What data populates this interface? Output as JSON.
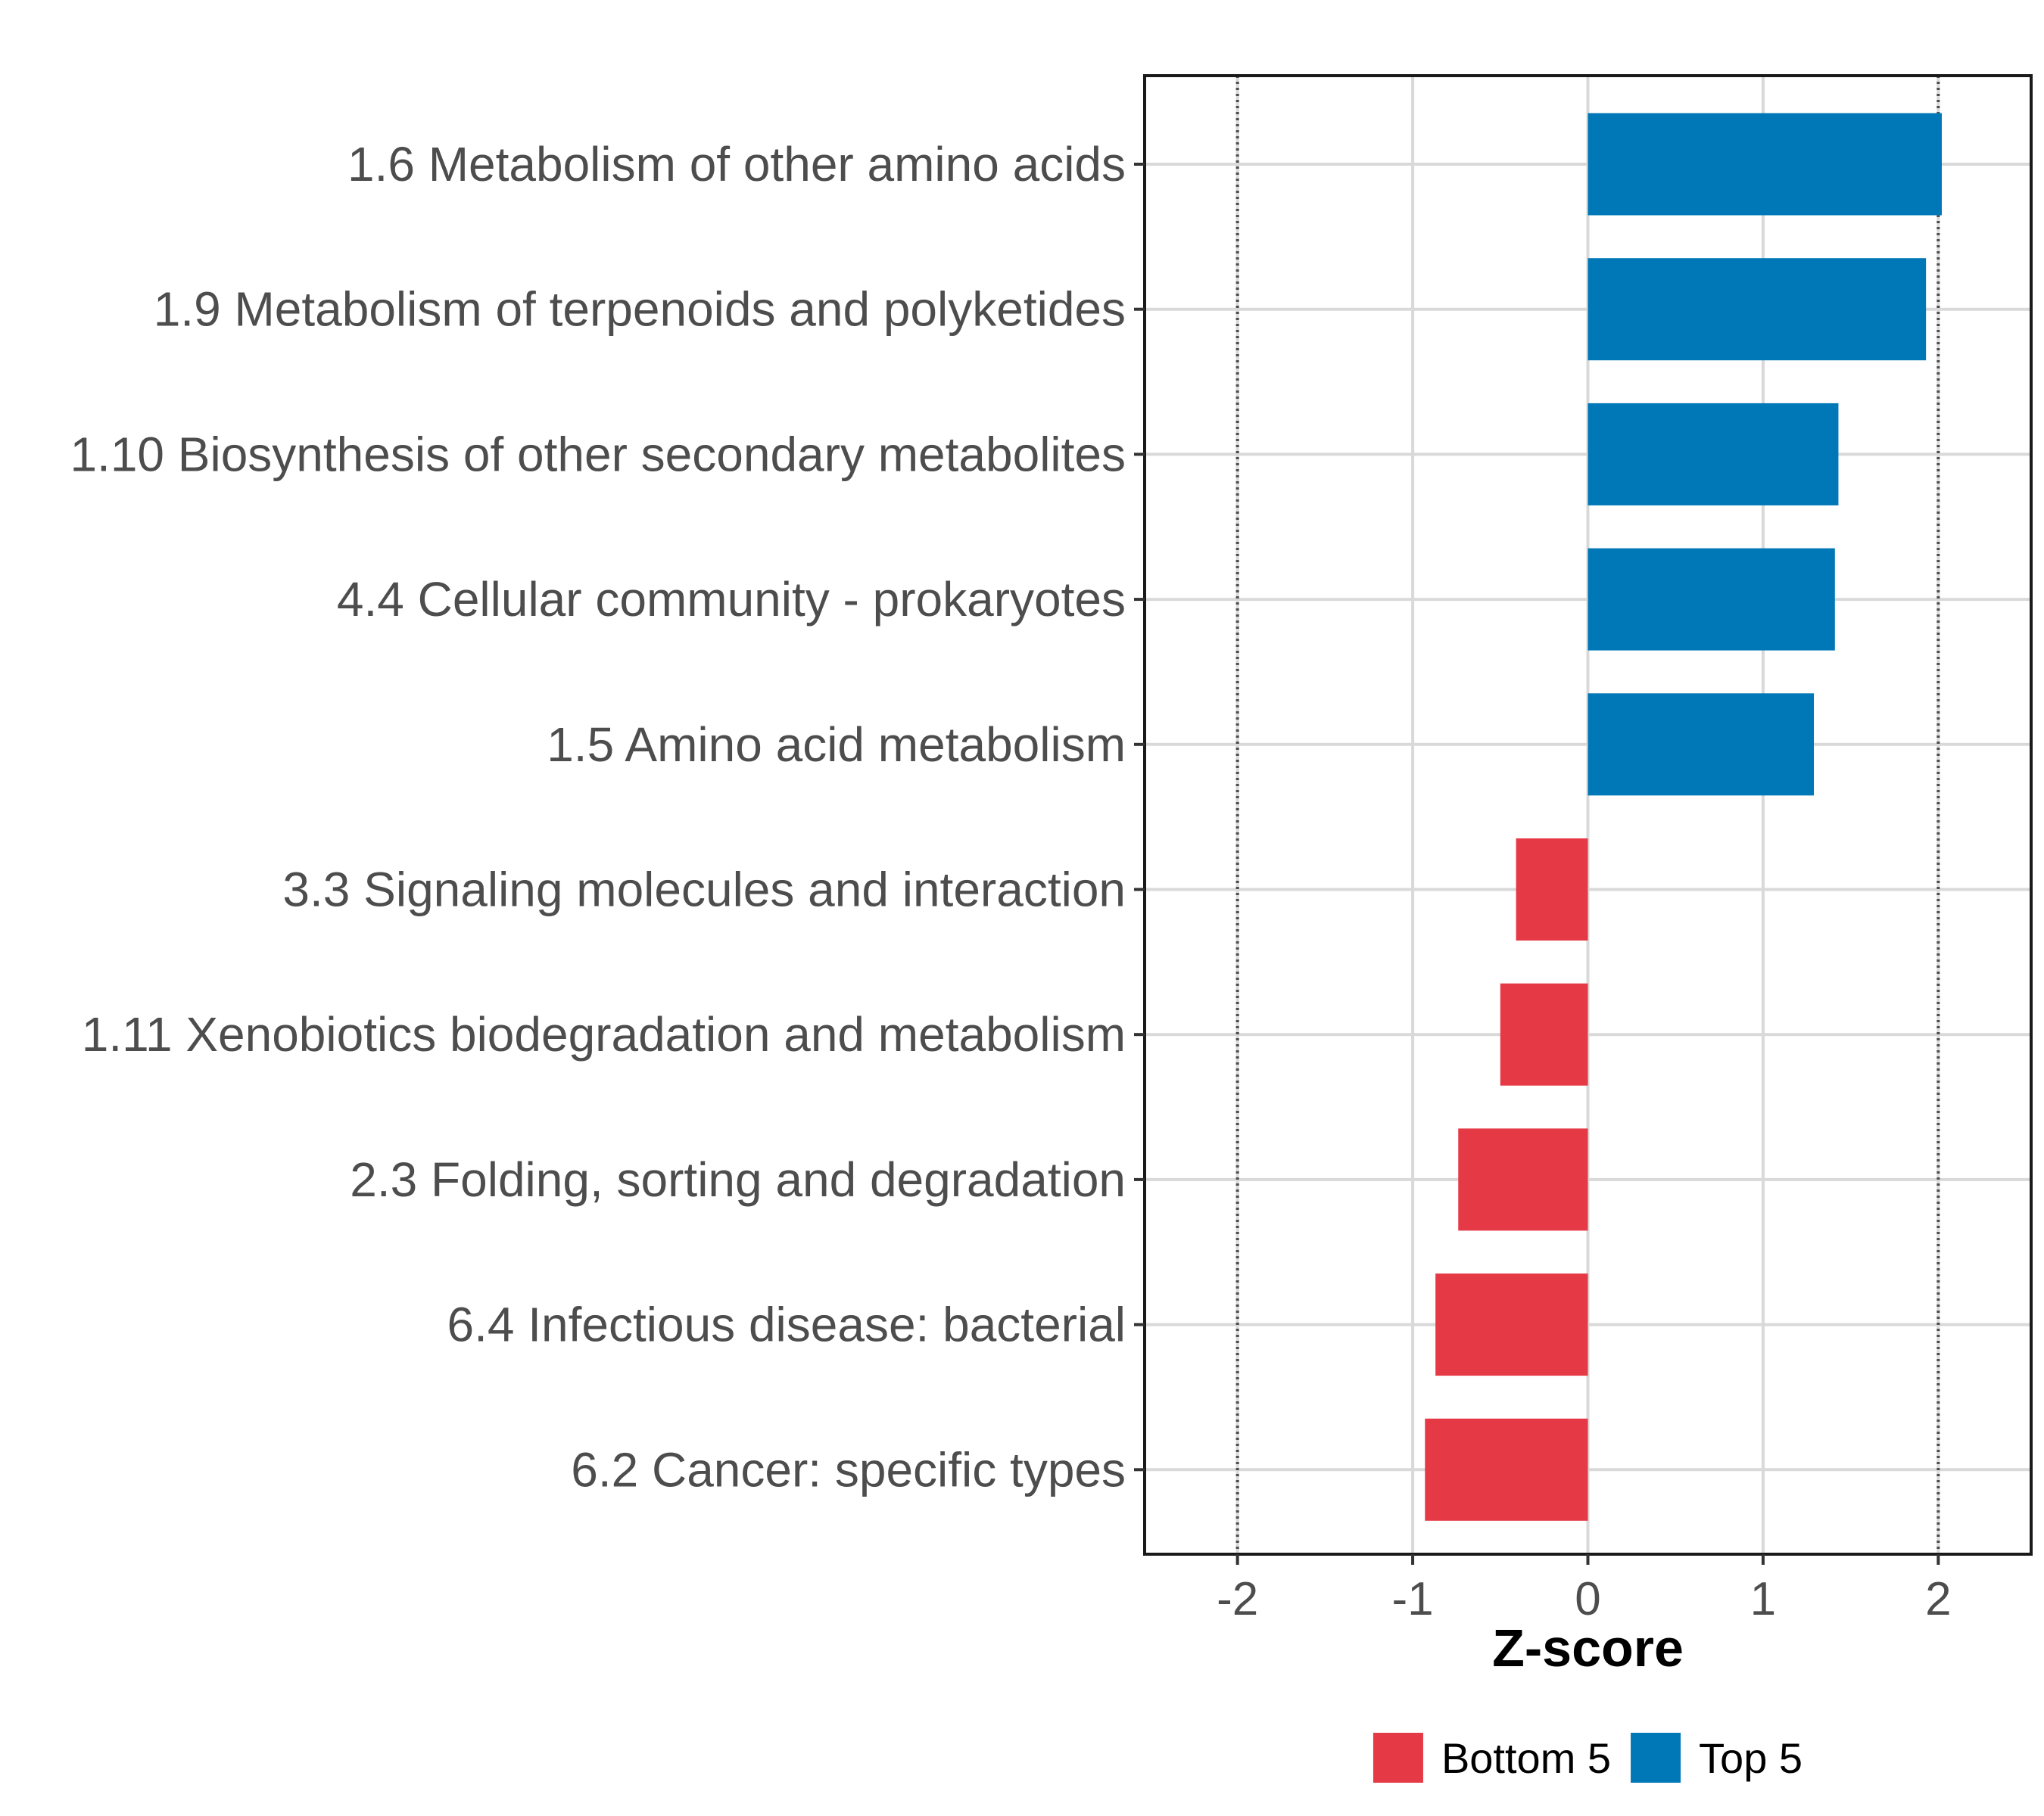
{
  "chart_data": {
    "type": "bar",
    "orientation": "horizontal",
    "categories": [
      "1.6 Metabolism of other amino acids",
      "1.9 Metabolism of terpenoids and polyketides",
      "1.10 Biosynthesis of other secondary metabolites",
      "4.4 Cellular community - prokaryotes",
      "1.5 Amino acid metabolism",
      "3.3 Signaling molecules and interaction",
      "1.11 Xenobiotics biodegradation and metabolism",
      "2.3 Folding, sorting and degradation",
      "6.4 Infectious disease: bacterial",
      "6.2 Cancer: specific types"
    ],
    "values": [
      2.02,
      1.93,
      1.43,
      1.41,
      1.29,
      -0.41,
      -0.5,
      -0.74,
      -0.87,
      -0.93
    ],
    "groups": [
      "Top 5",
      "Top 5",
      "Top 5",
      "Top 5",
      "Top 5",
      "Bottom 5",
      "Bottom 5",
      "Bottom 5",
      "Bottom 5",
      "Bottom 5"
    ],
    "xlabel": "Z-score",
    "ylabel": "",
    "xlim": [
      -2.53,
      2.53
    ],
    "xticks": [
      -2,
      -1,
      0,
      1,
      2
    ],
    "xtick_labels": [
      "-2",
      "-1",
      "0",
      "1",
      "2"
    ],
    "reference_lines": [
      -2,
      2
    ],
    "grid": true,
    "legend": {
      "position": "bottom",
      "entries": [
        {
          "label": "Bottom 5",
          "color": "#E63946"
        },
        {
          "label": "Top 5",
          "color": "#0077B6"
        }
      ]
    }
  },
  "colors": {
    "Top 5": "#0077B6",
    "Bottom 5": "#E63946",
    "grid": "#d9d9d9",
    "frame": "#1a1a1a",
    "reference_line": "#4d4d4d"
  }
}
